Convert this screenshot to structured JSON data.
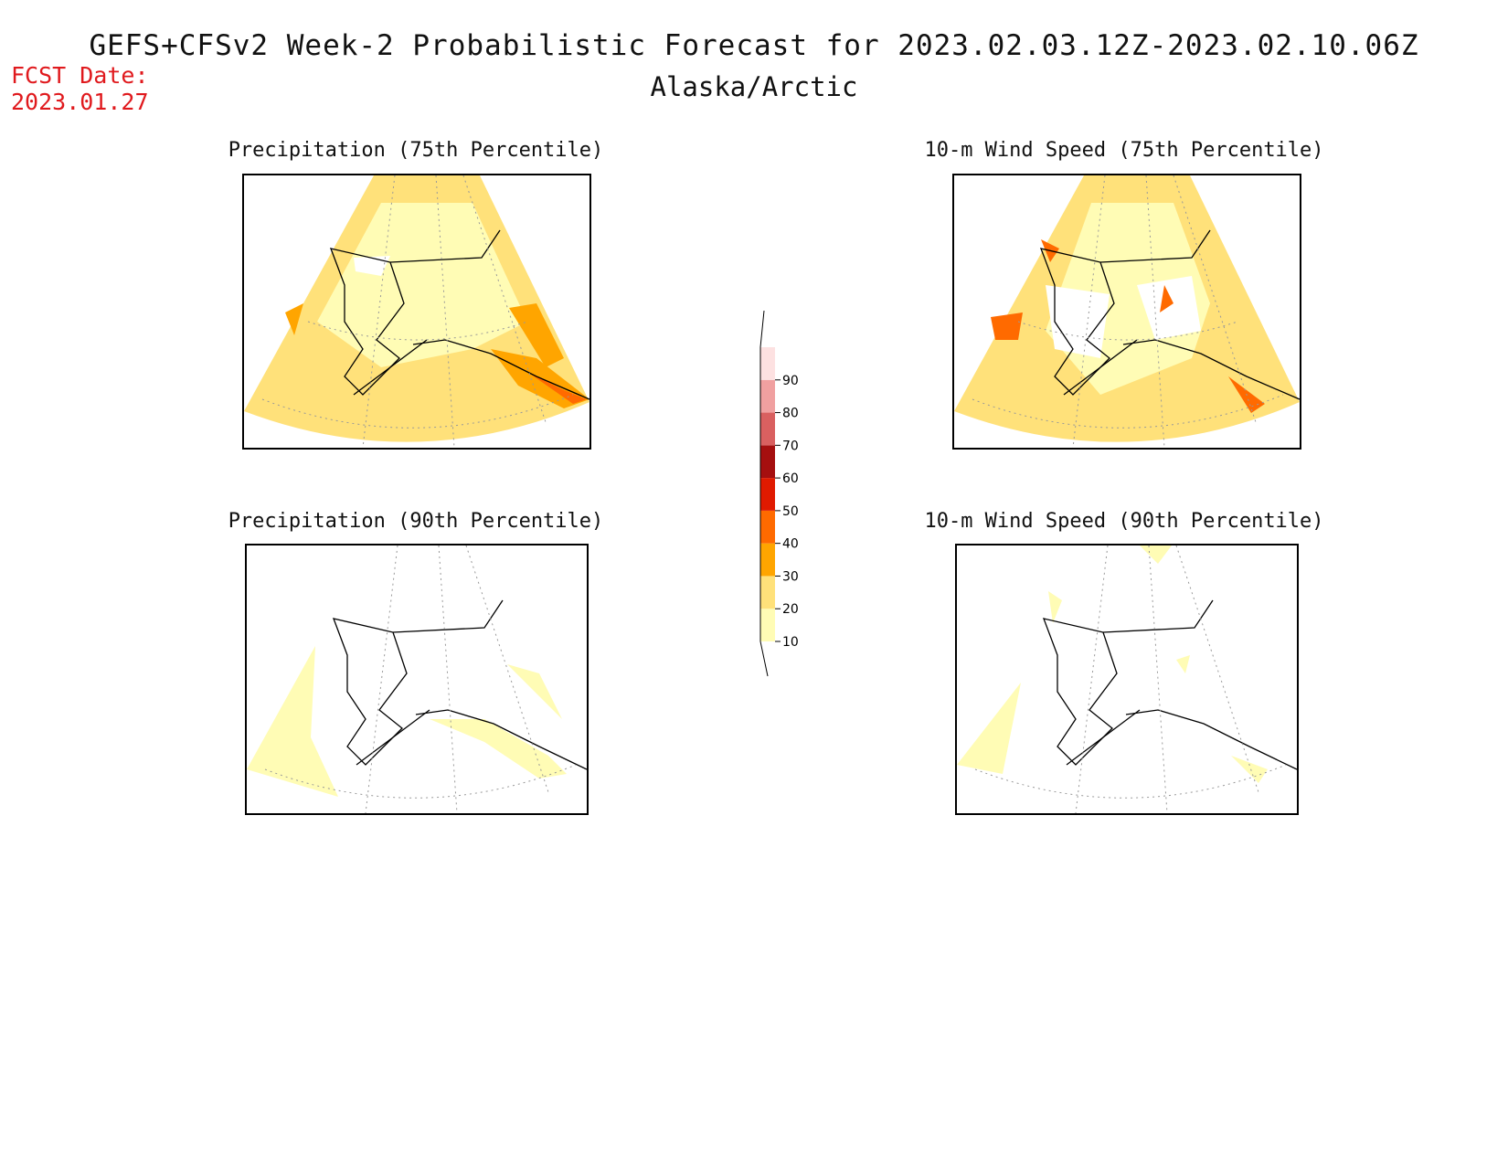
{
  "header": {
    "title": "GEFS+CFSv2 Week-2 Probabilistic Forecast for 2023.02.03.12Z-2023.02.10.06Z",
    "subtitle": "Alaska/Arctic",
    "fcst_label": "FCST Date:",
    "fcst_date": "2023.01.27"
  },
  "panels": [
    {
      "title": "Precipitation (75th Percentile)"
    },
    {
      "title": "10-m Wind Speed (75th Percentile)"
    },
    {
      "title": "Precipitation (90th Percentile)"
    },
    {
      "title": "10-m Wind Speed (90th Percentile)"
    }
  ],
  "colorbar": {
    "levels": [
      {
        "label": "10",
        "color": "#fffcb5"
      },
      {
        "label": "20",
        "color": "#ffe17a"
      },
      {
        "label": "30",
        "color": "#ffa500"
      },
      {
        "label": "40",
        "color": "#ff6a00"
      },
      {
        "label": "50",
        "color": "#e01a00"
      },
      {
        "label": "60",
        "color": "#a50f0f"
      },
      {
        "label": "70",
        "color": "#d96060"
      },
      {
        "label": "80",
        "color": "#f0a0a0"
      },
      {
        "label": "90",
        "color": "#fde1e1"
      }
    ]
  },
  "colors": {
    "low": "#fffcb5",
    "mid": "#ffe17a",
    "high": "#ffa500",
    "higher": "#ff6a00",
    "fcst_text": "#e0191d"
  }
}
